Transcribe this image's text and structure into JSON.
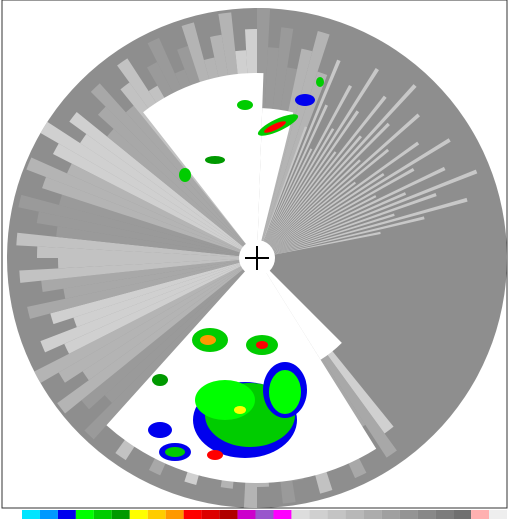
{
  "colorbar": [
    "#00e5ff",
    "#0099ff",
    "#0000ee",
    "#00ff00",
    "#00cc00",
    "#009900",
    "#ffff00",
    "#ffcc00",
    "#ff9900",
    "#ff0000",
    "#dd0000",
    "#b00000",
    "#cc00cc",
    "#9955cc",
    "#ff00ff",
    "#dddddd",
    "#d0d0d0",
    "#c4c4c4",
    "#b8b8b8",
    "#acacac",
    "#a0a0a0",
    "#949494",
    "#888888",
    "#7c7c7c",
    "#707070",
    "#ffb0b0",
    "#eeeeee"
  ]
}
